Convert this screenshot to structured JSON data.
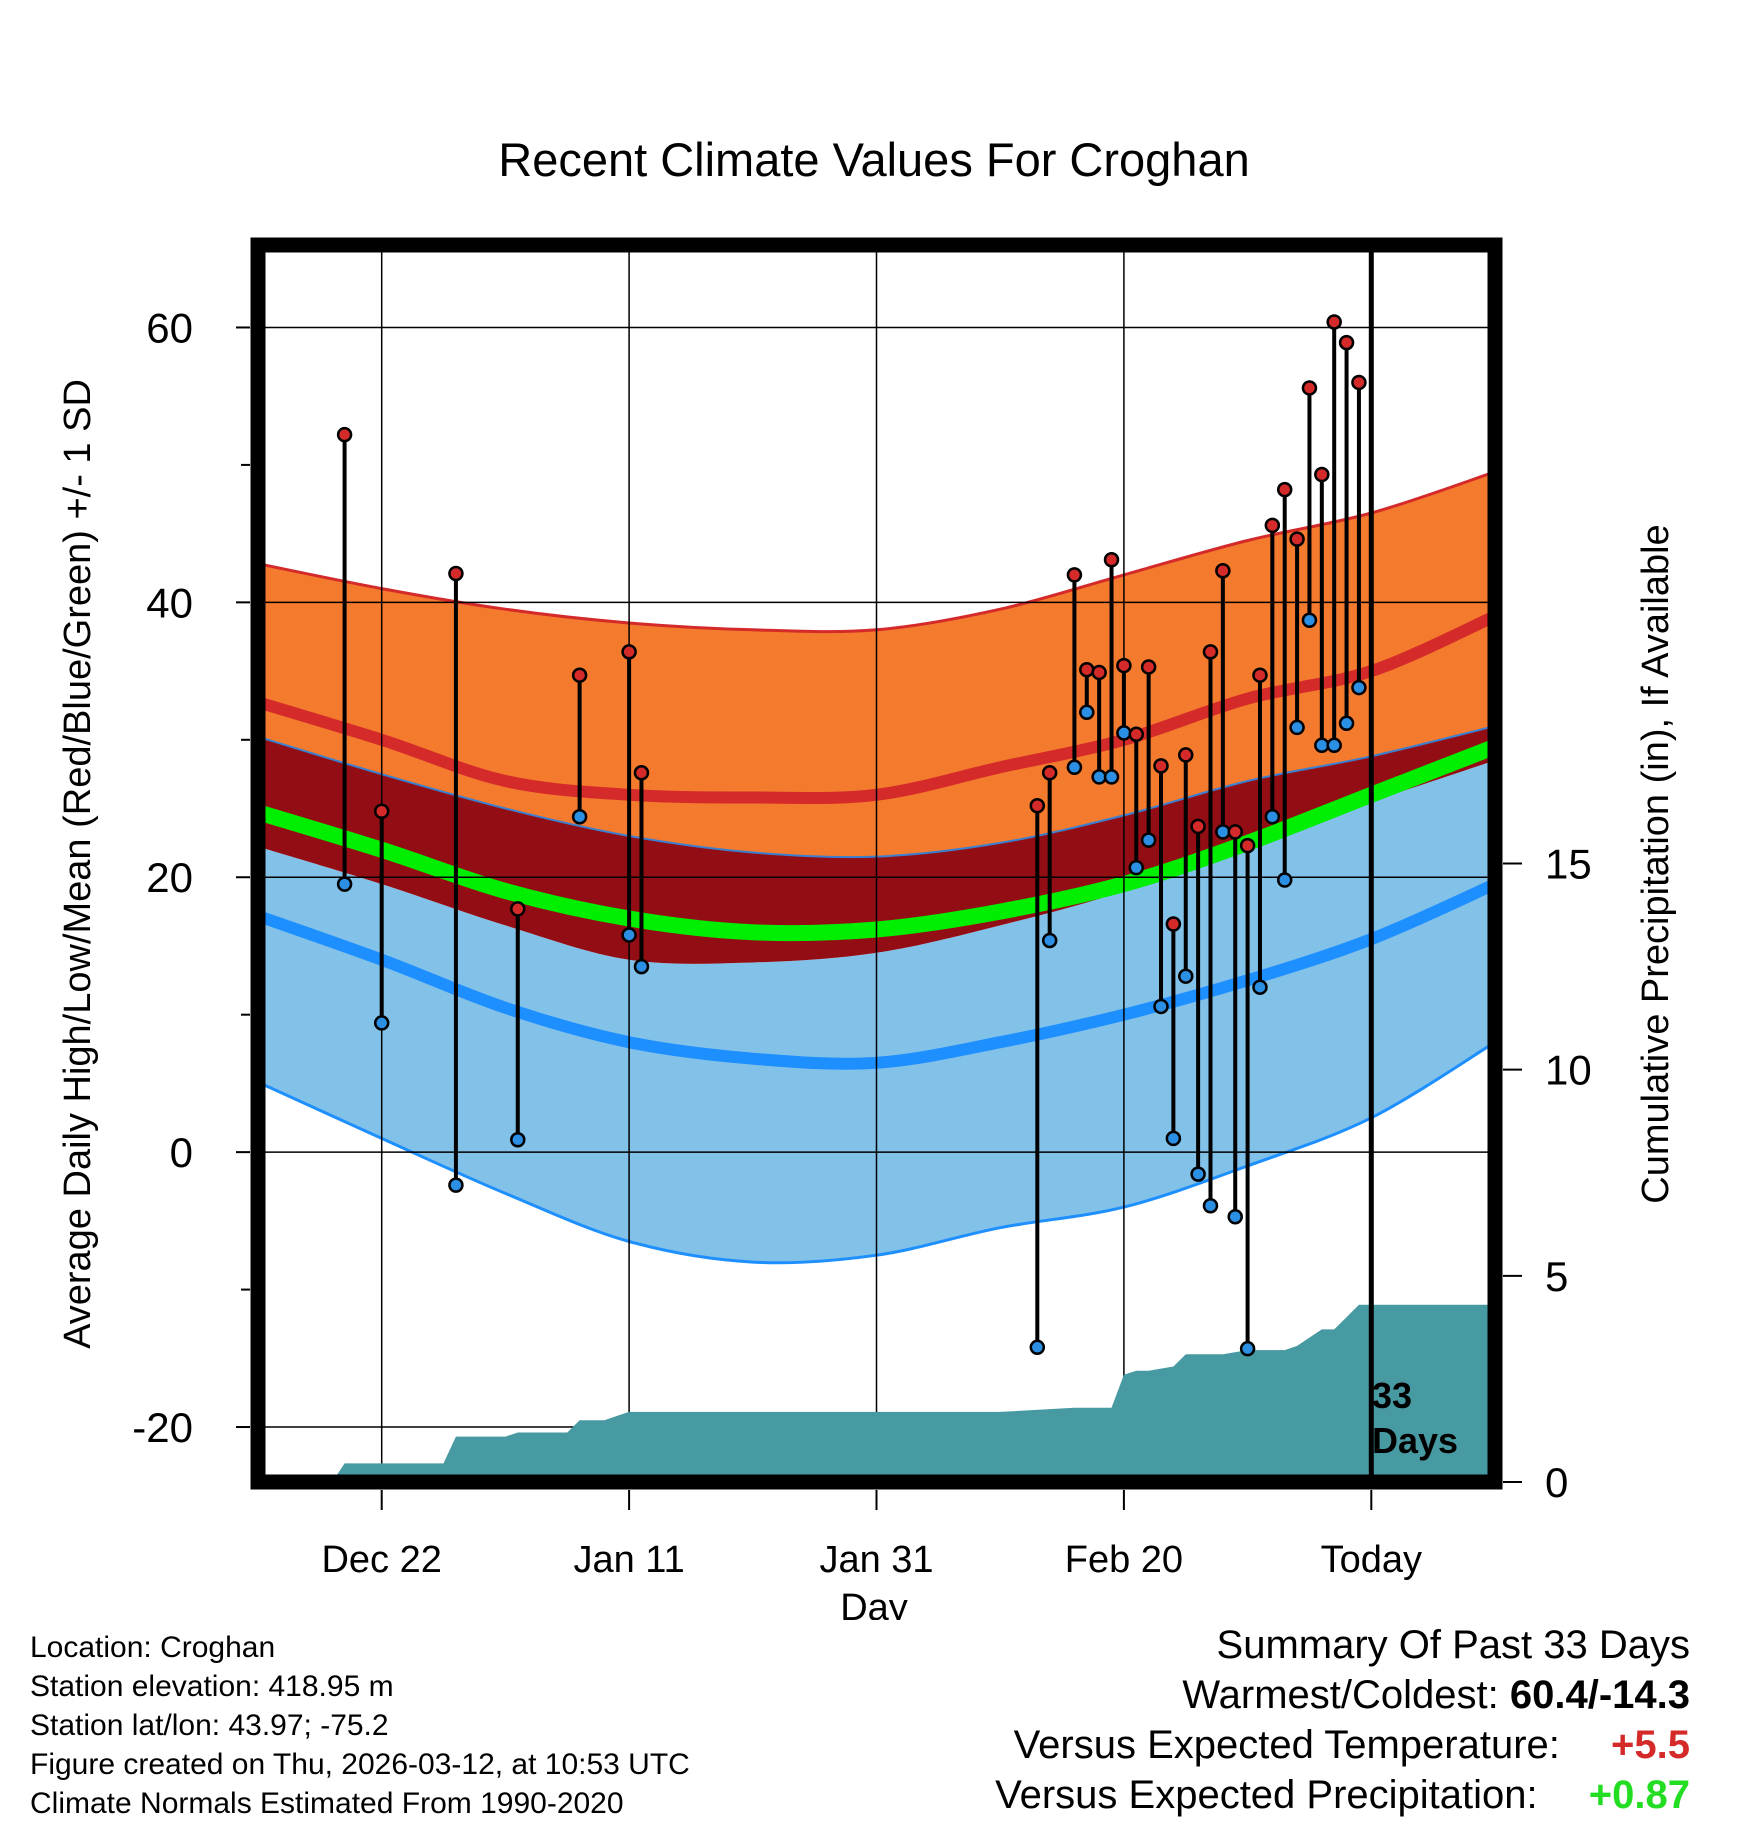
{
  "chart_data": {
    "type": "line",
    "title": "Recent Climate Values For Croghan",
    "xlabel": "Day",
    "ylabel_left": "Average Daily High/Low/Mean (Red/Blue/Green) +/- 1 SD",
    "ylabel_right": "Cumulative Precipitation (in), If Available",
    "day_range": [
      0,
      100
    ],
    "ylim": [
      -24,
      66
    ],
    "y_ticks": [
      -20,
      0,
      20,
      40,
      60
    ],
    "y_minor_ticks": [
      -10,
      10,
      30,
      50
    ],
    "precip_ylim": [
      0,
      30
    ],
    "precip_ticks": [
      0,
      5,
      10,
      15
    ],
    "x_ticks": [
      {
        "day": 10,
        "label": "Dec 22"
      },
      {
        "day": 30,
        "label": "Jan 11"
      },
      {
        "day": 50,
        "label": "Jan 31"
      },
      {
        "day": 70,
        "label": "Feb 20"
      },
      {
        "day": 90,
        "label": "Today"
      }
    ],
    "today_day": 90,
    "period_label_line1": "33",
    "period_label_line2": "Days",
    "normals": {
      "days": [
        -1,
        10,
        20,
        30,
        40,
        50,
        60,
        70,
        80,
        90,
        100
      ],
      "high_mean": [
        33,
        30,
        27,
        26,
        25.8,
        26,
        28,
        30,
        33,
        35,
        39
      ],
      "high_upper": [
        43,
        41,
        39.5,
        38.5,
        38,
        38,
        39.5,
        42,
        44.5,
        46.5,
        49.5
      ],
      "high_lower": [
        30.5,
        27.5,
        25,
        23,
        21.8,
        21.5,
        22.5,
        24.5,
        27,
        28.8,
        31
      ],
      "avg_mean": [
        25,
        22,
        19,
        17,
        16,
        16.2,
        17.5,
        19.5,
        22.5,
        26,
        29.5
      ],
      "low_mean": [
        17.5,
        14,
        10.5,
        8,
        6.8,
        6.5,
        8,
        10,
        12.5,
        15.5,
        19.5
      ],
      "low_upper": [
        22.5,
        19.5,
        16.5,
        14,
        13.8,
        14.5,
        16.5,
        19,
        22.5,
        25.5,
        28.5
      ],
      "low_lower": [
        5.5,
        1,
        -3,
        -6.5,
        -8,
        -7.5,
        -5.5,
        -4,
        -1,
        2.5,
        8
      ]
    },
    "observations": [
      {
        "day": 7,
        "high": 52.2,
        "low": 19.5
      },
      {
        "day": 10,
        "high": 24.8,
        "low": 9.4
      },
      {
        "day": 16,
        "high": 42.1,
        "low": -2.4
      },
      {
        "day": 21,
        "high": 17.7,
        "low": 0.9
      },
      {
        "day": 26,
        "high": 34.7,
        "low": 24.4
      },
      {
        "day": 30,
        "high": 36.4,
        "low": 15.8
      },
      {
        "day": 31,
        "high": 27.6,
        "low": 13.5
      },
      {
        "day": 63,
        "high": 25.2,
        "low": -14.2
      },
      {
        "day": 64,
        "high": 27.6,
        "low": 15.4
      },
      {
        "day": 66,
        "high": 42.0,
        "low": 28.0
      },
      {
        "day": 67,
        "high": 35.1,
        "low": 32.0
      },
      {
        "day": 68,
        "high": 34.9,
        "low": 27.3
      },
      {
        "day": 69,
        "high": 43.1,
        "low": 27.3
      },
      {
        "day": 70,
        "high": 35.4,
        "low": 30.5
      },
      {
        "day": 71,
        "high": 30.4,
        "low": 20.7
      },
      {
        "day": 72,
        "high": 35.3,
        "low": 22.7
      },
      {
        "day": 73,
        "high": 28.1,
        "low": 10.6
      },
      {
        "day": 74,
        "high": 16.6,
        "low": 1.0
      },
      {
        "day": 75,
        "high": 28.9,
        "low": 12.8
      },
      {
        "day": 76,
        "high": 23.7,
        "low": -1.6
      },
      {
        "day": 77,
        "high": 36.4,
        "low": -3.9
      },
      {
        "day": 78,
        "high": 42.3,
        "low": 23.3
      },
      {
        "day": 79,
        "high": 23.3,
        "low": -4.7
      },
      {
        "day": 80,
        "high": 22.3,
        "low": -14.3
      },
      {
        "day": 81,
        "high": 34.7,
        "low": 12.0
      },
      {
        "day": 82,
        "high": 45.6,
        "low": 24.4
      },
      {
        "day": 83,
        "high": 48.2,
        "low": 19.8
      },
      {
        "day": 84,
        "high": 44.6,
        "low": 30.9
      },
      {
        "day": 85,
        "high": 55.6,
        "low": 38.7
      },
      {
        "day": 86,
        "high": 49.3,
        "low": 29.6
      },
      {
        "day": 87,
        "high": 60.4,
        "low": 29.6
      },
      {
        "day": 88,
        "high": 58.9,
        "low": 31.2
      },
      {
        "day": 89,
        "high": 56.0,
        "low": 33.8
      }
    ],
    "precip": {
      "days": [
        6,
        7,
        15,
        16,
        20,
        21,
        25,
        26,
        28,
        29,
        30,
        31,
        40,
        50,
        60,
        66,
        68,
        69,
        70,
        71,
        72,
        74,
        75,
        78,
        80,
        83,
        84,
        86,
        87,
        88,
        89,
        90,
        100
      ],
      "cumulative": [
        0,
        0.45,
        0.45,
        1.1,
        1.1,
        1.2,
        1.2,
        1.5,
        1.5,
        1.6,
        1.7,
        1.7,
        1.7,
        1.7,
        1.7,
        1.8,
        1.8,
        1.8,
        2.6,
        2.7,
        2.7,
        2.8,
        3.1,
        3.1,
        3.2,
        3.2,
        3.3,
        3.7,
        3.7,
        4.0,
        4.3,
        4.3,
        4.3
      ]
    }
  },
  "footer": {
    "location": "Location: Croghan",
    "elevation": "Station elevation: 418.95 m",
    "latlon": "Station lat/lon: 43.97; -75.2",
    "created": "Figure created on Thu, 2026-03-12, at 10:53 UTC",
    "normals": "Climate Normals Estimated From 1990-2020"
  },
  "summary": {
    "title": "Summary Of Past 33 Days",
    "warmest_coldest_label": "Warmest/Coldest:",
    "warmest_coldest_value": "60.4/-14.3",
    "temp_label": "Versus Expected Temperature:",
    "temp_value": "+5.5",
    "temp_color": "#d42a2a",
    "precip_label": "Versus Expected Precipitation:",
    "precip_value": "+0.87",
    "precip_color": "#22dd22"
  },
  "colors": {
    "high_band": "#f47a2e",
    "high_mean": "#d42a2a",
    "avg_band": "#930e14",
    "avg_mean": "#00ee00",
    "low_band": "#82c1e8",
    "low_mean": "#1e8fff",
    "precip_fill": "#489aa2",
    "high_dot": "#d42a2a",
    "low_dot": "#2b8fe4"
  }
}
